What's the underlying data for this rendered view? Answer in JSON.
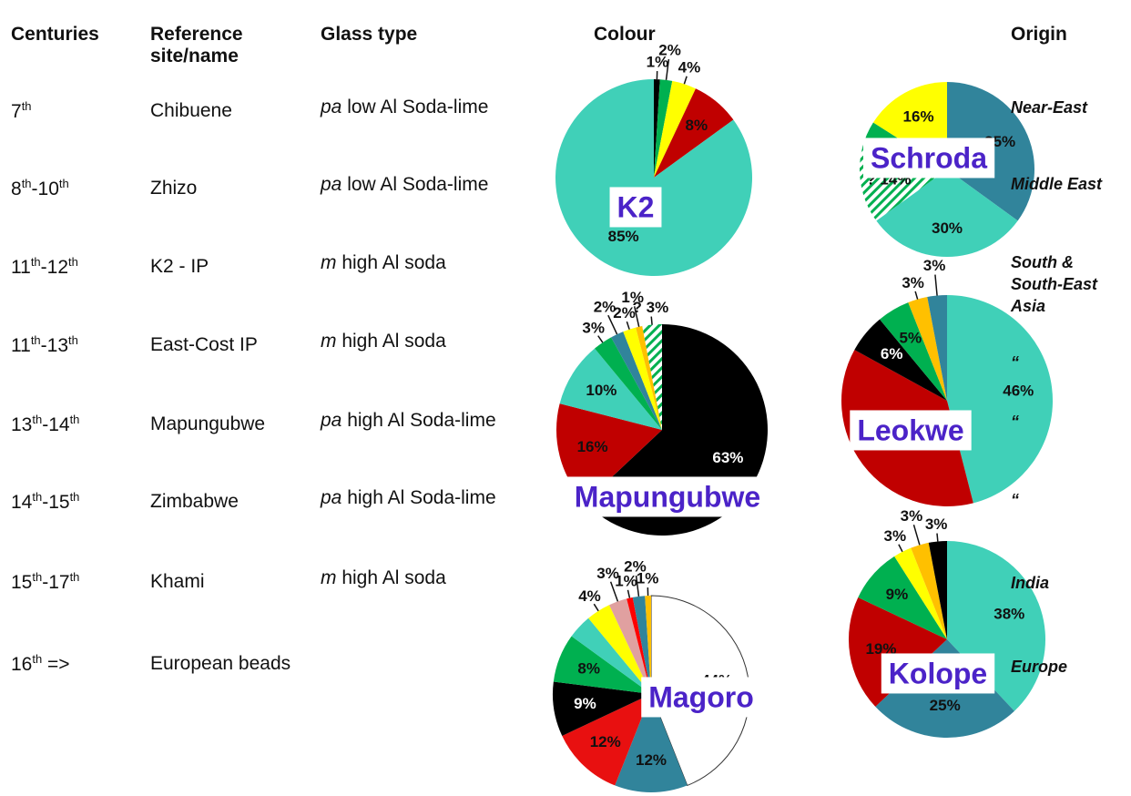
{
  "table": {
    "header": [
      "Centuries",
      "Reference site/name",
      "Glass type",
      "Colour",
      "Origin"
    ],
    "rows": [
      {
        "centuries": [
          "7",
          "th"
        ],
        "site": "Chibuene",
        "glass": [
          "pa",
          " low Al Soda-lime"
        ],
        "origin": "Near-East"
      },
      {
        "centuries": [
          "8",
          "th",
          "-10",
          "th"
        ],
        "site": "Zhizo",
        "glass": [
          "pa",
          " low Al Soda-lime"
        ],
        "origin": "Middle East"
      },
      {
        "centuries": [
          "11",
          "th",
          "-12",
          "th"
        ],
        "site": "K2 - IP",
        "glass": [
          "m",
          " high Al soda"
        ],
        "origin": "South & South-East Asia"
      },
      {
        "centuries": [
          "11",
          "th",
          "-13",
          "th"
        ],
        "site": "East-Cost IP",
        "glass": [
          "m",
          " high Al soda"
        ],
        "origin": "“"
      },
      {
        "centuries": [
          "13",
          "th",
          "-14",
          "th"
        ],
        "site": "Mapungubwe",
        "glass": [
          "pa",
          " high Al Soda-lime"
        ],
        "origin": "“"
      },
      {
        "centuries": [
          "14",
          "th",
          "-15",
          "th"
        ],
        "site": "Zimbabwe",
        "glass": [
          "pa",
          " high Al Soda-lime"
        ],
        "origin": "“"
      },
      {
        "centuries": [
          "15",
          "th",
          "-17",
          "th"
        ],
        "site": "Khami",
        "glass": [
          "m",
          " high Al soda"
        ],
        "origin": "India"
      },
      {
        "centuries": [
          "16",
          "th",
          " =>"
        ],
        "site": "European beads",
        "origin": "Europe"
      }
    ]
  },
  "chart_data": [
    {
      "type": "pie",
      "title": "K2",
      "values": [
        1,
        2,
        4,
        8,
        85
      ],
      "value_labels": [
        "1%",
        "2%",
        "4%",
        "8%",
        "85%"
      ],
      "colors": [
        "#000000",
        "#00b050",
        "#ffff00",
        "#c00000",
        "#40d0b8"
      ]
    },
    {
      "type": "pie",
      "title": "Schroda",
      "values": [
        35,
        30,
        14,
        5,
        16
      ],
      "value_labels": [
        "35%",
        "30%",
        "? 14%",
        "5%",
        "16%"
      ],
      "colors": [
        "#31849b",
        "#40d0b8",
        "#00b050",
        "#00b050",
        "#ffff00"
      ],
      "hatched_slices": [
        2
      ]
    },
    {
      "type": "pie",
      "title": "Mapungubwe",
      "values": [
        63,
        16,
        10,
        3,
        2,
        2,
        1,
        3
      ],
      "value_labels": [
        "63%",
        "16%",
        "10%",
        "3%",
        "2%",
        "2%",
        "1%",
        "? 3%"
      ],
      "colors": [
        "#000000",
        "#c00000",
        "#40d0b8",
        "#00b050",
        "#31849b",
        "#ffff00",
        "#ffc000",
        "#00b050"
      ],
      "hatched_slices": [
        7
      ]
    },
    {
      "type": "pie",
      "title": "Leokwe",
      "values": [
        46,
        37,
        6,
        5,
        3,
        3
      ],
      "value_labels": [
        "46%",
        "37%",
        "6%",
        "5%",
        "3%",
        "3%"
      ],
      "colors": [
        "#40d0b8",
        "#c00000",
        "#000000",
        "#00b050",
        "#ffc000",
        "#31849b"
      ]
    },
    {
      "type": "pie",
      "title": "Magoro",
      "values": [
        44,
        12,
        12,
        9,
        8,
        4,
        4,
        3,
        1,
        2,
        1
      ],
      "value_labels": [
        "44%",
        "12%",
        "12%",
        "9%",
        "8%",
        null,
        "4%",
        "3%",
        "1%",
        "2%",
        "1%"
      ],
      "colors": [
        "#ffffff",
        "#31849b",
        "#e81010",
        "#000000",
        "#00b050",
        "#40d0b8",
        "#ffff00",
        "#e0a0a0",
        "#ff0000",
        "#31849b",
        "#ffc000"
      ]
    },
    {
      "type": "pie",
      "title": "Kolope",
      "values": [
        38,
        25,
        19,
        9,
        3,
        3,
        3
      ],
      "value_labels": [
        "38%",
        "25%",
        "19%",
        "9%",
        "3%",
        "3%",
        "3%"
      ],
      "colors": [
        "#40d0b8",
        "#31849b",
        "#c00000",
        "#00b050",
        "#ffff00",
        "#ffc000",
        "#000000"
      ]
    }
  ]
}
